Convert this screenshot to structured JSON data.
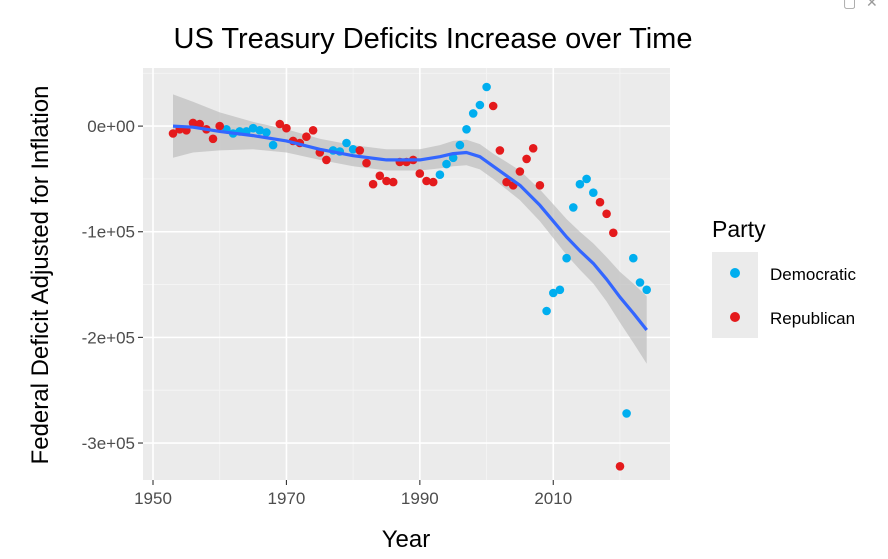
{
  "window": {
    "corner_icons": [
      "restore-icon",
      "close-icon"
    ]
  },
  "colors": {
    "panel_bg": "#EBEBEB",
    "grid_major": "#FFFFFF",
    "grid_minor": "#F5F5F5",
    "smooth_line": "#3366FF",
    "ribbon": "#BDBDBD",
    "Democratic": "#00AEEF",
    "Republican": "#E41A1C"
  },
  "chart_data": {
    "type": "scatter",
    "title": "US Treasury Deficits Increase over Time",
    "xlabel": "Year",
    "ylabel": "Federal Deficit Adjusted for Inflation",
    "xlim": [
      1948.5,
      2027.5
    ],
    "ylim": [
      -335000,
      55000
    ],
    "xticks": [
      1950,
      1970,
      1990,
      2010
    ],
    "xtick_labels": [
      "1950",
      "1970",
      "1990",
      "2010"
    ],
    "yticks": [
      0,
      -100000,
      -200000,
      -300000
    ],
    "ytick_labels": [
      "0e+00",
      "-1e+05",
      "-2e+05",
      "-3e+05"
    ],
    "grid": true,
    "legend": {
      "title": "Party",
      "position": "right",
      "entries": [
        "Democratic",
        "Republican"
      ]
    },
    "series": [
      {
        "name": "Democratic",
        "points": [
          [
            1961,
            -3000
          ],
          [
            1962,
            -7000
          ],
          [
            1963,
            -5000
          ],
          [
            1964,
            -5000
          ],
          [
            1965,
            -2000
          ],
          [
            1966,
            -4000
          ],
          [
            1967,
            -6000
          ],
          [
            1968,
            -18000
          ],
          [
            1977,
            -23000
          ],
          [
            1978,
            -24000
          ],
          [
            1979,
            -16000
          ],
          [
            1980,
            -22000
          ],
          [
            1993,
            -46000
          ],
          [
            1994,
            -36000
          ],
          [
            1995,
            -30000
          ],
          [
            1996,
            -18000
          ],
          [
            1997,
            -3000
          ],
          [
            1998,
            12000
          ],
          [
            1999,
            20000
          ],
          [
            2000,
            37000
          ],
          [
            2009,
            -175000
          ],
          [
            2010,
            -158000
          ],
          [
            2011,
            -155000
          ],
          [
            2012,
            -125000
          ],
          [
            2013,
            -77000
          ],
          [
            2014,
            -55000
          ],
          [
            2015,
            -50000
          ],
          [
            2016,
            -63000
          ],
          [
            2021,
            -272000
          ],
          [
            2022,
            -125000
          ],
          [
            2023,
            -148000
          ],
          [
            2024,
            -155000
          ]
        ]
      },
      {
        "name": "Republican",
        "points": [
          [
            1953,
            -7000
          ],
          [
            1954,
            -3000
          ],
          [
            1955,
            -4000
          ],
          [
            1956,
            3000
          ],
          [
            1957,
            2000
          ],
          [
            1958,
            -3000
          ],
          [
            1959,
            -12000
          ],
          [
            1960,
            0
          ],
          [
            1969,
            2000
          ],
          [
            1970,
            -2000
          ],
          [
            1971,
            -14000
          ],
          [
            1972,
            -16000
          ],
          [
            1973,
            -10000
          ],
          [
            1974,
            -4000
          ],
          [
            1975,
            -25000
          ],
          [
            1976,
            -32000
          ],
          [
            1981,
            -23000
          ],
          [
            1982,
            -35000
          ],
          [
            1983,
            -55000
          ],
          [
            1984,
            -47000
          ],
          [
            1985,
            -52000
          ],
          [
            1986,
            -53000
          ],
          [
            1987,
            -34000
          ],
          [
            1988,
            -34000
          ],
          [
            1989,
            -32000
          ],
          [
            1990,
            -45000
          ],
          [
            1991,
            -52000
          ],
          [
            1992,
            -53000
          ],
          [
            2001,
            19000
          ],
          [
            2002,
            -23000
          ],
          [
            2003,
            -53000
          ],
          [
            2004,
            -56000
          ],
          [
            2005,
            -43000
          ],
          [
            2006,
            -31000
          ],
          [
            2007,
            -21000
          ],
          [
            2008,
            -56000
          ],
          [
            2017,
            -72000
          ],
          [
            2018,
            -83000
          ],
          [
            2019,
            -101000
          ],
          [
            2020,
            -322000
          ]
        ]
      }
    ],
    "smooth": {
      "x": [
        1953,
        1956,
        1960,
        1965,
        1970,
        1975,
        1980,
        1985,
        1990,
        1993,
        1995,
        1997,
        1999,
        2001,
        2003,
        2005,
        2008,
        2010,
        2012,
        2014,
        2016,
        2018,
        2020,
        2022,
        2024
      ],
      "y": [
        0,
        -1000,
        -5000,
        -9000,
        -14000,
        -22000,
        -28000,
        -32000,
        -32000,
        -29000,
        -26000,
        -25000,
        -29000,
        -38000,
        -47000,
        -56000,
        -75000,
        -90000,
        -105000,
        -118000,
        -130000,
        -145000,
        -162000,
        -177000,
        -193000
      ],
      "se": [
        30000,
        24000,
        18000,
        13000,
        11000,
        10000,
        10000,
        10000,
        10000,
        11000,
        12000,
        12000,
        12000,
        12000,
        13000,
        14000,
        15000,
        16000,
        17000,
        18000,
        19000,
        21000,
        24000,
        28000,
        32000
      ]
    }
  }
}
